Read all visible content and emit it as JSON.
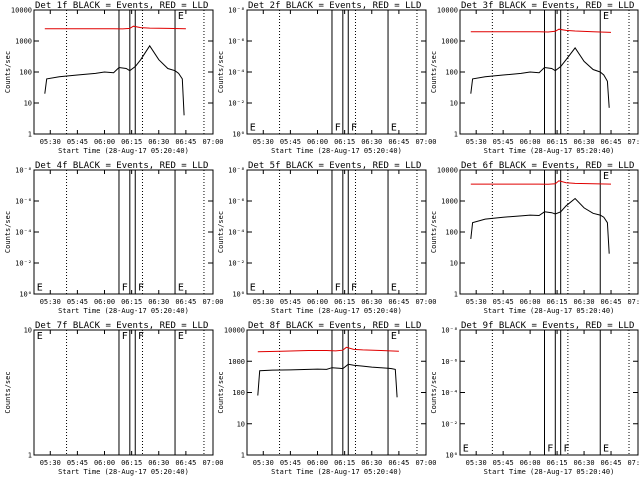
{
  "colors": {
    "events": "#000000",
    "lld": "#e00000",
    "frame": "#000000",
    "background": "#ffffff"
  },
  "chart_data": [
    {
      "type": "line",
      "det": "1f",
      "title": "Det 1f BLACK = Events, RED = LLD",
      "ylabel": "Counts/sec",
      "xlabel": "Start Time (28-Aug-17 05:20:40)",
      "scale": "log",
      "ylim": [
        1,
        10000
      ],
      "yticks": [
        "1",
        "10",
        "100",
        "1000",
        "10000"
      ],
      "xticks": [
        "05:30",
        "05:45",
        "06:00",
        "06:15",
        "06:30",
        "06:45",
        "07:00"
      ],
      "vlines_solid": [
        "06:08",
        "06:14",
        "06:17",
        "06:39"
      ],
      "vlines_dotted": [
        "05:39",
        "06:21",
        "06:55"
      ],
      "markers": [
        {
          "label": "E",
          "x": "06:40",
          "y": 10000
        }
      ],
      "series": [
        {
          "color": "red",
          "x": [
            "05:27",
            "05:40",
            "05:55",
            "06:05",
            "06:10",
            "06:14",
            "06:16",
            "06:20",
            "06:25",
            "06:35",
            "06:45"
          ],
          "y": [
            2500,
            2500,
            2500,
            2500,
            2450,
            2550,
            3000,
            2700,
            2600,
            2550,
            2500
          ]
        },
        {
          "color": "black",
          "x": [
            "05:27",
            "05:28",
            "05:35",
            "05:45",
            "05:55",
            "06:00",
            "06:05",
            "06:08",
            "06:12",
            "06:14",
            "06:17",
            "06:20",
            "06:25",
            "06:30",
            "06:35",
            "06:39",
            "06:41",
            "06:43",
            "06:44"
          ],
          "y": [
            20,
            60,
            70,
            80,
            90,
            100,
            95,
            140,
            130,
            110,
            150,
            250,
            700,
            250,
            130,
            110,
            90,
            60,
            4
          ]
        }
      ]
    },
    {
      "type": "line",
      "det": "2f",
      "title": "Det 2f BLACK = Events, RED = LLD",
      "ylabel": "Counts/sec",
      "xlabel": "Start Time (28-Aug-17 05:20:40)",
      "scale": "log",
      "ylim": [
        1,
        10000000000
      ],
      "yticks": [
        "10⁰",
        "10⁻²",
        "10⁻⁴",
        "10⁻⁶",
        "10⁻⁸"
      ],
      "xticks": [
        "05:30",
        "05:45",
        "06:00",
        "06:15",
        "06:30",
        "06:45",
        "07:00"
      ],
      "vlines_solid": [
        "06:08",
        "06:14",
        "06:17",
        "06:39"
      ],
      "vlines_dotted": [
        "05:39",
        "06:21",
        "06:55"
      ],
      "markers": [
        {
          "label": "E",
          "x": "05:22",
          "y": 10
        },
        {
          "label": "F",
          "x": "06:09",
          "y": 10
        },
        {
          "label": "F",
          "x": "06:18",
          "y": 10
        },
        {
          "label": "E",
          "x": "06:40",
          "y": 10
        }
      ],
      "series": []
    },
    {
      "type": "line",
      "det": "3f",
      "title": "Det 3f BLACK = Events, RED = LLD",
      "ylabel": "Counts/sec",
      "xlabel": "Start Time (28-Aug-17 05:20:40)",
      "scale": "log",
      "ylim": [
        1,
        10000
      ],
      "yticks": [
        "1",
        "10",
        "100",
        "1000",
        "10000"
      ],
      "xticks": [
        "05:30",
        "05:45",
        "06:00",
        "06:15",
        "06:30",
        "06:45",
        "07:00"
      ],
      "vlines_solid": [
        "06:08",
        "06:14",
        "06:17",
        "06:39"
      ],
      "vlines_dotted": [
        "05:39",
        "06:21",
        "06:55"
      ],
      "markers": [
        {
          "label": "E",
          "x": "06:40",
          "y": 10000
        }
      ],
      "series": [
        {
          "color": "red",
          "x": [
            "05:27",
            "05:40",
            "05:55",
            "06:05",
            "06:10",
            "06:14",
            "06:16",
            "06:20",
            "06:25",
            "06:35",
            "06:45"
          ],
          "y": [
            2000,
            2000,
            2000,
            2000,
            1950,
            2050,
            2400,
            2200,
            2100,
            2000,
            1900
          ]
        },
        {
          "color": "black",
          "x": [
            "05:27",
            "05:28",
            "05:35",
            "05:45",
            "05:55",
            "06:00",
            "06:05",
            "06:08",
            "06:12",
            "06:14",
            "06:17",
            "06:20",
            "06:25",
            "06:30",
            "06:35",
            "06:39",
            "06:41",
            "06:43",
            "06:44"
          ],
          "y": [
            20,
            60,
            70,
            80,
            90,
            100,
            95,
            140,
            130,
            110,
            150,
            250,
            600,
            220,
            120,
            100,
            80,
            50,
            7
          ]
        }
      ]
    },
    {
      "type": "line",
      "det": "4f",
      "title": "Det 4f BLACK = Events, RED = LLD",
      "ylabel": "Counts/sec",
      "xlabel": "Start Time (28-Aug-17 05:20:40)",
      "scale": "log",
      "ylim": [
        1,
        10000000000
      ],
      "yticks": [
        "10⁰",
        "10⁻²",
        "10⁻⁴",
        "10⁻⁶",
        "10⁻⁸"
      ],
      "xticks": [
        "05:30",
        "05:45",
        "06:00",
        "06:15",
        "06:30",
        "06:45",
        "07:00"
      ],
      "vlines_solid": [
        "06:08",
        "06:14",
        "06:17",
        "06:39"
      ],
      "vlines_dotted": [
        "05:39",
        "06:21",
        "06:55"
      ],
      "markers": [
        {
          "label": "E",
          "x": "05:22",
          "y": 10
        },
        {
          "label": "F",
          "x": "06:09",
          "y": 10
        },
        {
          "label": "F",
          "x": "06:18",
          "y": 10
        },
        {
          "label": "E",
          "x": "06:40",
          "y": 10
        }
      ],
      "series": []
    },
    {
      "type": "line",
      "det": "5f",
      "title": "Det 5f BLACK = Events, RED = LLD",
      "ylabel": "Counts/sec",
      "xlabel": "Start Time (28-Aug-17 05:20:40)",
      "scale": "log",
      "ylim": [
        1,
        10000000000
      ],
      "yticks": [
        "10⁰",
        "10⁻²",
        "10⁻⁴",
        "10⁻⁶",
        "10⁻⁸"
      ],
      "xticks": [
        "05:30",
        "05:45",
        "06:00",
        "06:15",
        "06:30",
        "06:45",
        "07:00"
      ],
      "vlines_solid": [
        "06:08",
        "06:14",
        "06:17",
        "06:39"
      ],
      "vlines_dotted": [
        "05:39",
        "06:21",
        "06:55"
      ],
      "markers": [
        {
          "label": "E",
          "x": "05:22",
          "y": 10
        },
        {
          "label": "F",
          "x": "06:09",
          "y": 10
        },
        {
          "label": "F",
          "x": "06:18",
          "y": 10
        },
        {
          "label": "E",
          "x": "06:40",
          "y": 10
        }
      ],
      "series": []
    },
    {
      "type": "line",
      "det": "6f",
      "title": "Det 6f BLACK = Events, RED = LLD",
      "ylabel": "Counts/sec",
      "xlabel": "Start Time (28-Aug-17 05:20:40)",
      "scale": "log",
      "ylim": [
        1,
        10000
      ],
      "yticks": [
        "1",
        "10",
        "100",
        "1000",
        "10000"
      ],
      "xticks": [
        "05:30",
        "05:45",
        "06:00",
        "06:15",
        "06:30",
        "06:45",
        "07:00"
      ],
      "vlines_solid": [
        "06:08",
        "06:14",
        "06:17",
        "06:39"
      ],
      "vlines_dotted": [
        "05:39",
        "06:21",
        "06:55"
      ],
      "markers": [
        {
          "label": "E",
          "x": "06:40",
          "y": 10000
        }
      ],
      "series": [
        {
          "color": "red",
          "x": [
            "05:27",
            "05:40",
            "05:55",
            "06:05",
            "06:10",
            "06:14",
            "06:16",
            "06:20",
            "06:25",
            "06:35",
            "06:45"
          ],
          "y": [
            3500,
            3500,
            3500,
            3500,
            3450,
            3600,
            4500,
            3900,
            3700,
            3600,
            3500
          ]
        },
        {
          "color": "black",
          "x": [
            "05:27",
            "05:28",
            "05:35",
            "05:45",
            "05:55",
            "06:00",
            "06:05",
            "06:08",
            "06:12",
            "06:14",
            "06:17",
            "06:20",
            "06:25",
            "06:30",
            "06:35",
            "06:39",
            "06:41",
            "06:43",
            "06:44"
          ],
          "y": [
            60,
            200,
            260,
            300,
            330,
            350,
            340,
            450,
            420,
            380,
            450,
            700,
            1200,
            600,
            400,
            350,
            300,
            200,
            20
          ]
        }
      ]
    },
    {
      "type": "line",
      "det": "7f",
      "title": "Det 7f BLACK = Events, RED = LLD",
      "ylabel": "Counts/sec",
      "xlabel": "Start Time (28-Aug-17 05:20:40)",
      "scale": "log",
      "ylim": [
        1,
        10
      ],
      "yticks": [
        "1",
        "10"
      ],
      "xticks": [
        "05:30",
        "05:45",
        "06:00",
        "06:15",
        "06:30",
        "06:45",
        "07:00"
      ],
      "vlines_solid": [
        "06:08",
        "06:14",
        "06:17",
        "06:39"
      ],
      "vlines_dotted": [
        "05:39",
        "06:21",
        "06:55"
      ],
      "markers": [
        {
          "label": "E",
          "x": "05:22",
          "y": 10
        },
        {
          "label": "F",
          "x": "06:09",
          "y": 10
        },
        {
          "label": "F",
          "x": "06:18",
          "y": 10
        },
        {
          "label": "E",
          "x": "06:40",
          "y": 10
        }
      ],
      "series": []
    },
    {
      "type": "line",
      "det": "8f",
      "title": "Det 8f BLACK = Events, RED = LLD",
      "ylabel": "Counts/sec",
      "xlabel": "Start Time (28-Aug-17 05:20:40)",
      "scale": "log",
      "ylim": [
        1,
        10000
      ],
      "yticks": [
        "1",
        "10",
        "100",
        "1000",
        "10000"
      ],
      "xticks": [
        "05:30",
        "05:45",
        "06:00",
        "06:15",
        "06:30",
        "06:45",
        "07:00"
      ],
      "vlines_solid": [
        "06:08",
        "06:14",
        "06:17",
        "06:39"
      ],
      "vlines_dotted": [
        "05:39",
        "06:21",
        "06:55"
      ],
      "markers": [
        {
          "label": "E",
          "x": "06:40",
          "y": 10000
        }
      ],
      "series": [
        {
          "color": "red",
          "x": [
            "05:27",
            "05:40",
            "05:55",
            "06:05",
            "06:10",
            "06:14",
            "06:16",
            "06:20",
            "06:25",
            "06:35",
            "06:45"
          ],
          "y": [
            2000,
            2100,
            2200,
            2200,
            2150,
            2250,
            2800,
            2400,
            2300,
            2200,
            2100
          ]
        },
        {
          "color": "black",
          "x": [
            "05:27",
            "05:28",
            "05:35",
            "05:45",
            "05:55",
            "06:00",
            "06:05",
            "06:08",
            "06:12",
            "06:14",
            "06:17",
            "06:20",
            "06:25",
            "06:30",
            "06:35",
            "06:39",
            "06:41",
            "06:43",
            "06:44"
          ],
          "y": [
            80,
            500,
            520,
            530,
            550,
            560,
            550,
            620,
            600,
            580,
            800,
            750,
            700,
            650,
            620,
            600,
            580,
            550,
            70
          ]
        }
      ]
    },
    {
      "type": "line",
      "det": "9f",
      "title": "Det 9f BLACK = Events, RED = LLD",
      "ylabel": "Counts/sec",
      "xlabel": "Start Time (28-Aug-17 05:20:40)",
      "scale": "log",
      "ylim": [
        1,
        10000000000
      ],
      "yticks": [
        "10⁰",
        "10⁻²",
        "10⁻⁴",
        "10⁻⁶",
        "10⁻⁸"
      ],
      "xticks": [
        "05:30",
        "05:45",
        "06:00",
        "06:15",
        "06:30",
        "06:45",
        "07:00"
      ],
      "vlines_solid": [
        "06:08",
        "06:14",
        "06:17",
        "06:39"
      ],
      "vlines_dotted": [
        "05:39",
        "06:21",
        "06:55"
      ],
      "markers": [
        {
          "label": "E",
          "x": "05:22",
          "y": 10
        },
        {
          "label": "F",
          "x": "06:09",
          "y": 10
        },
        {
          "label": "F",
          "x": "06:18",
          "y": 10
        },
        {
          "label": "E",
          "x": "06:40",
          "y": 10
        }
      ],
      "series": []
    }
  ]
}
